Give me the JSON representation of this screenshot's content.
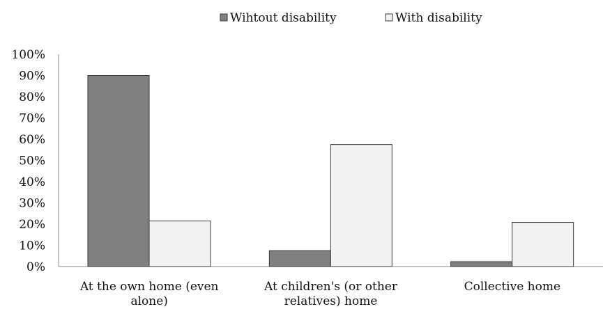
{
  "chart_data": {
    "type": "bar",
    "title": "",
    "xlabel": "",
    "ylabel": "",
    "categories": [
      [
        "At the own home (even",
        "alone)"
      ],
      [
        "At children's (or other",
        "relatives) home"
      ],
      [
        "Collective home"
      ]
    ],
    "series": [
      {
        "name": "Wihtout disability",
        "values": [
          0.9,
          0.075,
          0.023
        ],
        "color": "#808080"
      },
      {
        "name": "With disability",
        "values": [
          0.215,
          0.575,
          0.208
        ],
        "color": "#f2f2f2"
      }
    ],
    "ylim": [
      0,
      1
    ],
    "yticks": [
      "0%",
      "10%",
      "20%",
      "30%",
      "40%",
      "50%",
      "60%",
      "70%",
      "80%",
      "90%",
      "100%"
    ],
    "grid": false,
    "legend_position": "top"
  }
}
